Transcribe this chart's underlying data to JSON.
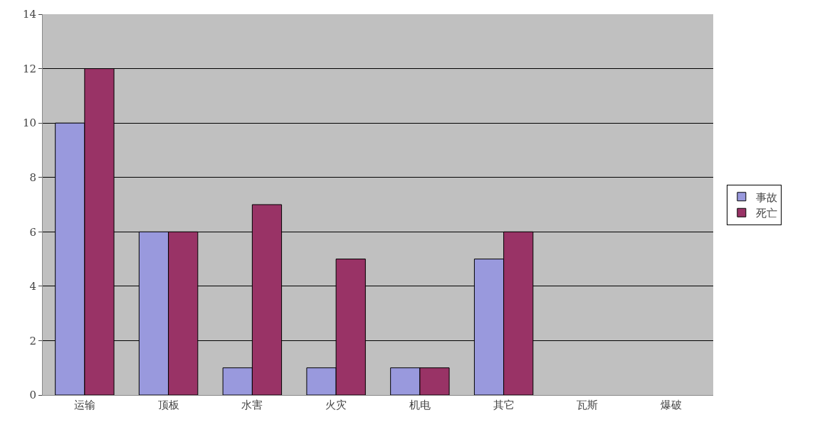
{
  "chart_data": {
    "type": "bar",
    "categories": [
      "运输",
      "顶板",
      "水害",
      "火灾",
      "机电",
      "其它",
      "瓦斯",
      "爆破"
    ],
    "series": [
      {
        "name": "事故",
        "color": "#9999dd",
        "values": [
          10,
          6,
          1,
          1,
          1,
          5,
          0,
          0
        ]
      },
      {
        "name": "死亡",
        "color": "#993366",
        "values": [
          12,
          6,
          7,
          5,
          1,
          6,
          0,
          0
        ]
      }
    ],
    "ylim": [
      0,
      14
    ],
    "yticks": [
      0,
      2,
      4,
      6,
      8,
      10,
      12,
      14
    ],
    "grid": "y",
    "legend": "right"
  }
}
